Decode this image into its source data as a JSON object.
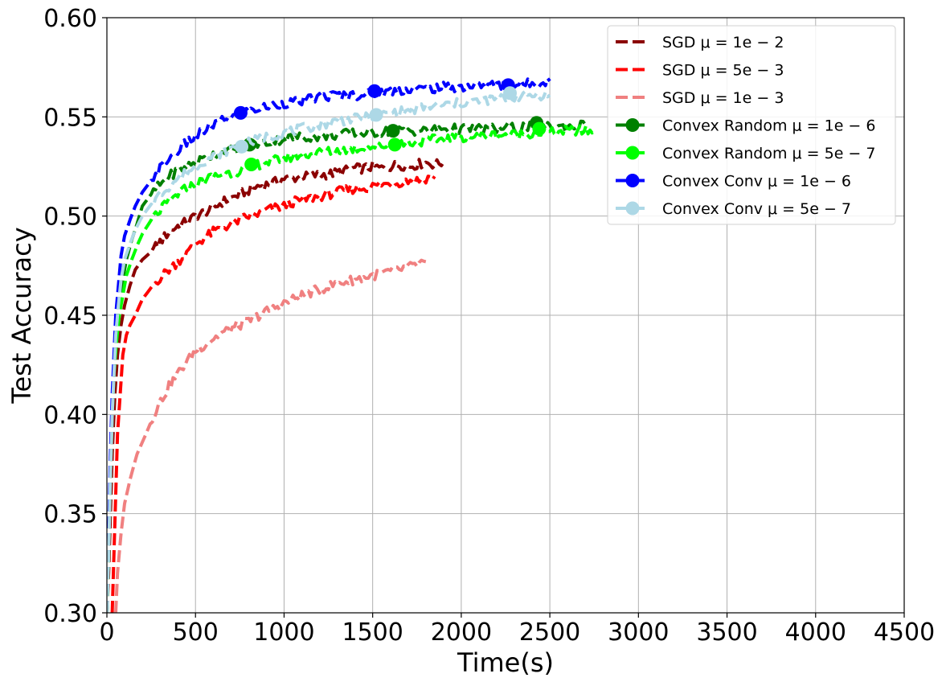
{
  "chart_data": {
    "type": "line",
    "title": "",
    "xlabel": "Time(s)",
    "ylabel": "Test Accuracy",
    "xlim": [
      0,
      4500
    ],
    "ylim": [
      0.3,
      0.6
    ],
    "xticks": [
      "0",
      "500",
      "1000",
      "1500",
      "2000",
      "2500",
      "3000",
      "3500",
      "4000",
      "4500"
    ],
    "yticks": [
      "0.30",
      "0.35",
      "0.40",
      "0.45",
      "0.50",
      "0.55",
      "0.60"
    ],
    "grid": true,
    "legend_position": "top-right",
    "series": [
      {
        "name": "SGD μ = 1e − 2",
        "color": "#8b0000",
        "marker": false,
        "x": [
          0,
          10,
          20,
          30,
          45,
          60,
          80,
          100,
          130,
          160,
          200,
          250,
          300,
          350,
          400,
          450,
          500,
          550,
          600,
          650,
          700,
          750,
          800,
          850,
          900,
          950,
          1000,
          1050,
          1100,
          1150,
          1200,
          1250,
          1300,
          1350,
          1400,
          1450,
          1500,
          1550,
          1600,
          1650,
          1700,
          1750,
          1800,
          1850,
          1900
        ],
        "y": [
          0.3,
          0.32,
          0.35,
          0.38,
          0.41,
          0.43,
          0.445,
          0.455,
          0.465,
          0.473,
          0.478,
          0.482,
          0.487,
          0.492,
          0.495,
          0.497,
          0.5,
          0.502,
          0.504,
          0.507,
          0.509,
          0.511,
          0.513,
          0.515,
          0.516,
          0.517,
          0.519,
          0.519,
          0.52,
          0.52,
          0.521,
          0.521,
          0.522,
          0.523,
          0.524,
          0.524,
          0.525,
          0.524,
          0.525,
          0.526,
          0.525,
          0.526,
          0.527,
          0.526,
          0.527
        ]
      },
      {
        "name": "SGD μ = 5e − 3",
        "color": "#ff0000",
        "marker": false,
        "x": [
          30,
          40,
          50,
          60,
          75,
          90,
          110,
          130,
          160,
          200,
          250,
          300,
          350,
          400,
          450,
          500,
          550,
          600,
          650,
          700,
          750,
          800,
          850,
          900,
          950,
          1000,
          1050,
          1100,
          1150,
          1200,
          1250,
          1300,
          1350,
          1400,
          1450,
          1500,
          1550,
          1600,
          1650,
          1700,
          1750,
          1800,
          1850
        ],
        "y": [
          0.3,
          0.33,
          0.36,
          0.39,
          0.41,
          0.43,
          0.44,
          0.445,
          0.45,
          0.458,
          0.464,
          0.469,
          0.473,
          0.477,
          0.481,
          0.486,
          0.489,
          0.492,
          0.494,
          0.496,
          0.498,
          0.5,
          0.501,
          0.503,
          0.504,
          0.505,
          0.507,
          0.508,
          0.509,
          0.51,
          0.511,
          0.512,
          0.513,
          0.514,
          0.514,
          0.515,
          0.516,
          0.516,
          0.517,
          0.518,
          0.518,
          0.519,
          0.52
        ]
      },
      {
        "name": "SGD μ = 1e − 3",
        "color": "#f08080",
        "marker": false,
        "x": [
          50,
          60,
          80,
          100,
          130,
          170,
          220,
          280,
          350,
          420,
          500,
          580,
          650,
          720,
          800,
          880,
          950,
          1000,
          1100,
          1200,
          1300,
          1400,
          1500,
          1600,
          1700,
          1800
        ],
        "y": [
          0.3,
          0.32,
          0.34,
          0.355,
          0.367,
          0.38,
          0.39,
          0.403,
          0.414,
          0.423,
          0.432,
          0.437,
          0.441,
          0.444,
          0.447,
          0.451,
          0.454,
          0.456,
          0.46,
          0.463,
          0.466,
          0.468,
          0.47,
          0.472,
          0.474,
          0.477
        ]
      },
      {
        "name": "Convex Random μ = 1e − 6",
        "color": "#008000",
        "marker": true,
        "markers_x": [
          805,
          1615,
          2425
        ],
        "markers_y": [
          0.536,
          0.543,
          0.547
        ],
        "x": [
          0,
          10,
          20,
          30,
          40,
          55,
          70,
          90,
          110,
          140,
          170,
          200,
          250,
          300,
          350,
          400,
          450,
          500,
          550,
          600,
          650,
          700,
          750,
          800,
          900,
          1000,
          1100,
          1200,
          1300,
          1400,
          1500,
          1600,
          1700,
          1800,
          1900,
          2000,
          2100,
          2200,
          2300,
          2400,
          2500,
          2600,
          2700
        ],
        "y": [
          0.3,
          0.33,
          0.37,
          0.4,
          0.42,
          0.44,
          0.455,
          0.468,
          0.478,
          0.488,
          0.496,
          0.505,
          0.511,
          0.516,
          0.52,
          0.523,
          0.525,
          0.527,
          0.529,
          0.531,
          0.532,
          0.533,
          0.534,
          0.536,
          0.537,
          0.539,
          0.54,
          0.54,
          0.541,
          0.542,
          0.542,
          0.543,
          0.543,
          0.543,
          0.544,
          0.544,
          0.544,
          0.544,
          0.545,
          0.545,
          0.545,
          0.545,
          0.546
        ]
      },
      {
        "name": "Convex Random μ = 5e − 7",
        "color": "#00ff00",
        "marker": true,
        "markers_x": [
          815,
          1625,
          2440
        ],
        "markers_y": [
          0.526,
          0.536,
          0.544
        ],
        "x": [
          0,
          10,
          20,
          30,
          40,
          55,
          70,
          90,
          110,
          140,
          170,
          200,
          250,
          300,
          350,
          400,
          450,
          500,
          550,
          600,
          650,
          700,
          750,
          800,
          900,
          1000,
          1100,
          1200,
          1300,
          1400,
          1500,
          1600,
          1700,
          1800,
          1900,
          2000,
          2100,
          2200,
          2300,
          2400,
          2500,
          2600,
          2750
        ],
        "y": [
          0.3,
          0.33,
          0.37,
          0.4,
          0.42,
          0.437,
          0.45,
          0.46,
          0.47,
          0.478,
          0.485,
          0.491,
          0.498,
          0.503,
          0.507,
          0.511,
          0.514,
          0.516,
          0.518,
          0.52,
          0.521,
          0.522,
          0.523,
          0.525,
          0.527,
          0.529,
          0.531,
          0.532,
          0.533,
          0.534,
          0.535,
          0.536,
          0.537,
          0.538,
          0.539,
          0.54,
          0.54,
          0.541,
          0.541,
          0.542,
          0.542,
          0.543,
          0.543
        ]
      },
      {
        "name": "Convex Conv μ = 1e − 6",
        "color": "#0000ff",
        "marker": true,
        "markers_x": [
          755,
          1510,
          2265
        ],
        "markers_y": [
          0.552,
          0.563,
          0.566
        ],
        "x": [
          0,
          10,
          20,
          30,
          40,
          50,
          65,
          80,
          100,
          130,
          160,
          200,
          250,
          300,
          350,
          400,
          450,
          500,
          550,
          600,
          650,
          700,
          800,
          900,
          1000,
          1100,
          1200,
          1300,
          1400,
          1500,
          1600,
          1700,
          1800,
          1900,
          2000,
          2100,
          2200,
          2300,
          2400,
          2500
        ],
        "y": [
          0.3,
          0.34,
          0.38,
          0.41,
          0.43,
          0.45,
          0.465,
          0.48,
          0.49,
          0.498,
          0.505,
          0.512,
          0.518,
          0.524,
          0.529,
          0.533,
          0.537,
          0.54,
          0.543,
          0.546,
          0.548,
          0.55,
          0.553,
          0.555,
          0.557,
          0.558,
          0.56,
          0.561,
          0.561,
          0.562,
          0.563,
          0.564,
          0.564,
          0.565,
          0.565,
          0.566,
          0.566,
          0.566,
          0.567,
          0.568
        ]
      },
      {
        "name": "Convex Conv μ = 5e − 7",
        "color": "#add8e6",
        "marker": true,
        "markers_x": [
          760,
          1520,
          2275
        ],
        "markers_y": [
          0.535,
          0.551,
          0.562
        ],
        "x": [
          0,
          10,
          20,
          30,
          40,
          50,
          65,
          80,
          100,
          130,
          160,
          200,
          250,
          300,
          350,
          400,
          450,
          500,
          550,
          600,
          650,
          700,
          800,
          900,
          1000,
          1100,
          1200,
          1300,
          1400,
          1500,
          1600,
          1700,
          1800,
          1900,
          2000,
          2100,
          2200,
          2300,
          2400,
          2500
        ],
        "y": [
          0.3,
          0.33,
          0.37,
          0.4,
          0.42,
          0.44,
          0.455,
          0.468,
          0.478,
          0.486,
          0.493,
          0.5,
          0.506,
          0.511,
          0.515,
          0.519,
          0.522,
          0.525,
          0.528,
          0.53,
          0.532,
          0.534,
          0.537,
          0.54,
          0.542,
          0.544,
          0.546,
          0.548,
          0.549,
          0.55,
          0.552,
          0.553,
          0.555,
          0.556,
          0.557,
          0.558,
          0.559,
          0.56,
          0.561,
          0.561
        ]
      }
    ]
  }
}
